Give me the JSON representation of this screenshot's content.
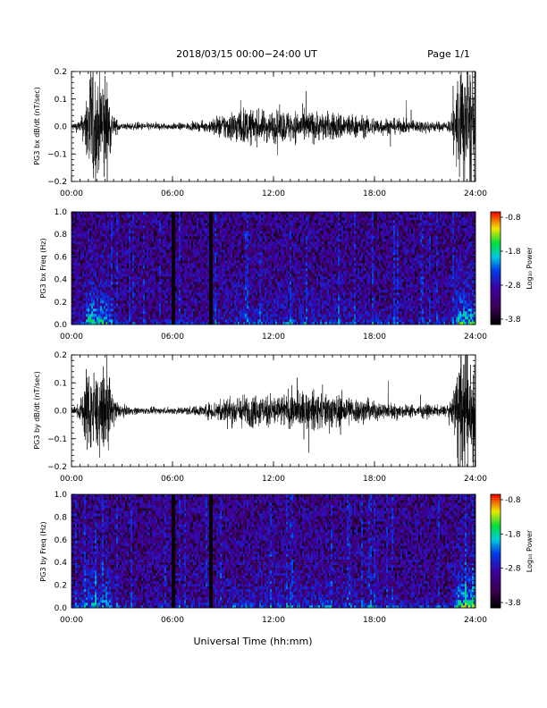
{
  "header": {
    "title": "2018/03/15  00:00−24:00 UT",
    "page": "Page 1/1"
  },
  "xlabel": "Universal Time (hh:mm)",
  "colorbar": {
    "label": "Log₁₀ Power",
    "ticks": [
      "-0.8",
      "-1.8",
      "-2.8",
      "-3.8"
    ],
    "range": [
      -3.8,
      -0.8
    ]
  },
  "chart_data": [
    {
      "type": "line",
      "ylabel": "PG3 bx dB/dt (nT/sec)",
      "xticks": [
        "00:00",
        "06:00",
        "12:00",
        "18:00",
        "24:00"
      ],
      "yticks": [
        "0.2",
        "0.1",
        "0.0",
        "−0.1",
        "−0.2"
      ],
      "xlim": [
        0,
        24
      ],
      "ylim": [
        -0.2,
        0.2
      ],
      "envelope": {
        "hours": [
          0,
          0.5,
          0.8,
          1.0,
          1.3,
          1.6,
          1.9,
          2.2,
          2.5,
          3,
          4,
          5,
          6,
          7,
          8,
          8.5,
          9,
          10,
          11,
          12,
          13,
          14,
          15,
          16,
          17,
          18,
          19,
          20,
          21,
          22,
          22.5,
          22.8,
          23,
          23.5,
          24
        ],
        "amplitude": [
          0.01,
          0.02,
          0.06,
          0.2,
          0.2,
          0.15,
          0.2,
          0.12,
          0.03,
          0.01,
          0.012,
          0.012,
          0.01,
          0.012,
          0.015,
          0.03,
          0.04,
          0.06,
          0.05,
          0.05,
          0.05,
          0.05,
          0.045,
          0.045,
          0.035,
          0.03,
          0.025,
          0.02,
          0.02,
          0.015,
          0.02,
          0.1,
          0.2,
          0.2,
          0.2
        ]
      }
    },
    {
      "type": "heatmap",
      "ylabel": "PG3 bx Freq (Hz)",
      "xticks": [
        "00:00",
        "06:00",
        "12:00",
        "18:00",
        "24:00"
      ],
      "yticks": [
        "1.0",
        "0.8",
        "0.6",
        "0.4",
        "0.2",
        "0.0"
      ],
      "xlim": [
        0,
        24
      ],
      "ylim": [
        0,
        1.0
      ],
      "dark_columns_hours": [
        6.0,
        6.2,
        8.2,
        8.4
      ],
      "z_range": [
        -3.8,
        -0.8
      ]
    },
    {
      "type": "line",
      "ylabel": "PG3 by dB/dt (nT/sec)",
      "xticks": [
        "00:00",
        "06:00",
        "12:00",
        "18:00",
        "24:00"
      ],
      "yticks": [
        "0.2",
        "0.1",
        "0.0",
        "−0.1",
        "−0.2"
      ],
      "xlim": [
        0,
        24
      ],
      "ylim": [
        -0.2,
        0.2
      ],
      "envelope": {
        "hours": [
          0,
          0.4,
          0.6,
          0.9,
          1.2,
          1.5,
          1.8,
          2.1,
          2.4,
          2.8,
          3.5,
          4.5,
          5.5,
          6.5,
          7.5,
          8.5,
          9,
          10,
          11,
          12,
          13,
          14,
          15,
          16,
          17,
          18,
          19,
          20,
          21,
          22,
          22.5,
          22.8,
          23,
          23.5,
          24
        ],
        "amplitude": [
          0.01,
          0.02,
          0.05,
          0.12,
          0.15,
          0.12,
          0.08,
          0.16,
          0.06,
          0.02,
          0.012,
          0.01,
          0.01,
          0.012,
          0.015,
          0.03,
          0.04,
          0.05,
          0.05,
          0.05,
          0.055,
          0.06,
          0.06,
          0.05,
          0.04,
          0.03,
          0.025,
          0.02,
          0.02,
          0.015,
          0.02,
          0.1,
          0.2,
          0.2,
          0.2
        ]
      }
    },
    {
      "type": "heatmap",
      "ylabel": "PG3 by Freq (Hz)",
      "xticks": [
        "00:00",
        "06:00",
        "12:00",
        "18:00",
        "24:00"
      ],
      "yticks": [
        "1.0",
        "0.8",
        "0.6",
        "0.4",
        "0.2",
        "0.0"
      ],
      "xlim": [
        0,
        24
      ],
      "ylim": [
        0,
        1.0
      ],
      "dark_columns_hours": [
        6.0,
        6.2,
        8.2,
        8.4
      ],
      "z_range": [
        -3.8,
        -0.8
      ]
    }
  ]
}
